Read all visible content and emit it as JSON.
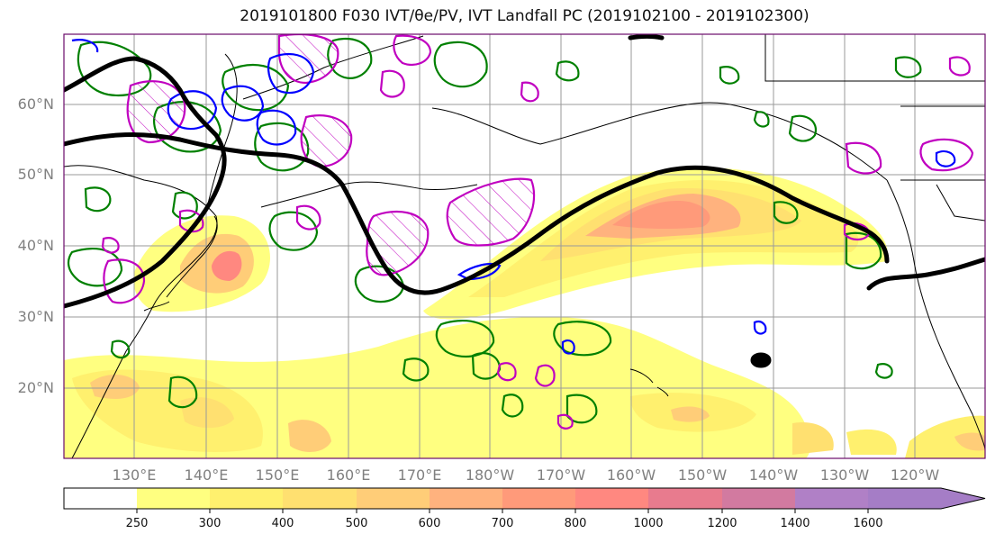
{
  "title": "2019101800 F030 IVT/θe/PV, IVT Landfall PC (2019102100 - 2019102300)",
  "map": {
    "lat_labels": [
      "60°N",
      "50°N",
      "40°N",
      "30°N",
      "20°N"
    ],
    "lon_labels": [
      "130°E",
      "140°E",
      "150°E",
      "160°E",
      "170°E",
      "180°W",
      "170°W",
      "160°W",
      "150°W",
      "140°W",
      "130°W",
      "120°W"
    ],
    "ivt_colors": [
      "#ffffff",
      "#ffff80",
      "#fff06e",
      "#ffe070",
      "#ffcd78",
      "#ffb27e",
      "#ff9a7a",
      "#ff8880",
      "#e87b8e",
      "#d27aa0",
      "#b080c6"
    ],
    "contour_colors": {
      "theta_e": "#008000",
      "pv_magenta": "#c000c0",
      "pv_blue": "#0000ff",
      "landfall_pc": "#000000"
    }
  },
  "colorbar": {
    "ticks": [
      "250",
      "300",
      "400",
      "500",
      "600",
      "700",
      "800",
      "1000",
      "1200",
      "1400",
      "1600"
    ],
    "colors": [
      "#ffffff",
      "#ffff80",
      "#fff06e",
      "#ffe070",
      "#ffcd78",
      "#ffb27e",
      "#ff9a7a",
      "#ff8880",
      "#e87b8e",
      "#d27aa0",
      "#b080c6",
      "#a57dc6"
    ]
  }
}
